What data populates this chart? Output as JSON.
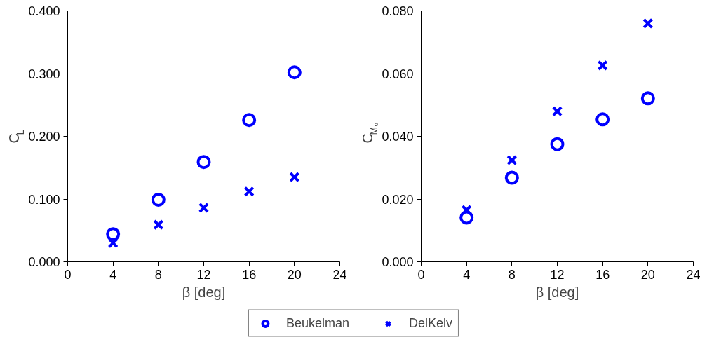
{
  "chart_data": [
    {
      "type": "scatter",
      "xlabel": "β [deg]",
      "ylabel": "C$_{L}$",
      "x": [
        4,
        8,
        12,
        16,
        20
      ],
      "xlim": [
        0,
        24
      ],
      "xticks": [
        0,
        4,
        8,
        12,
        16,
        20,
        24
      ],
      "ylim": [
        0,
        0.4
      ],
      "yticks": [
        {
          "value": 0,
          "label": "0.000"
        },
        {
          "value": 0.1,
          "label": "0.100"
        },
        {
          "value": 0.2,
          "label": "0.200"
        },
        {
          "value": 0.3,
          "label": "0.300"
        },
        {
          "value": 0.4,
          "label": "0.400"
        }
      ],
      "grid": false,
      "legend": "bottom",
      "series": [
        {
          "name": "Beukelman",
          "color": "#0000ff",
          "marker": "circle",
          "values": [
            0.044,
            0.099,
            0.159,
            0.226,
            0.302
          ]
        },
        {
          "name": "DelKelv",
          "color": "#0000ff",
          "marker": "cross",
          "values": [
            0.03,
            0.059,
            0.086,
            0.112,
            0.135
          ]
        }
      ]
    },
    {
      "type": "scatter",
      "xlabel": "β [deg]",
      "ylabel": "C$_{M₀}$",
      "x": [
        4,
        8,
        12,
        16,
        20
      ],
      "xlim": [
        0,
        24
      ],
      "xticks": [
        0,
        4,
        8,
        12,
        16,
        20,
        24
      ],
      "ylim": [
        0,
        0.08
      ],
      "yticks": [
        {
          "value": 0,
          "label": "0.000"
        },
        {
          "value": 0.02,
          "label": "0.020"
        },
        {
          "value": 0.04,
          "label": "0.040"
        },
        {
          "value": 0.06,
          "label": "0.060"
        },
        {
          "value": 0.08,
          "label": "0.080"
        }
      ],
      "grid": false,
      "legend": false,
      "series": [
        {
          "color": "#0000ff",
          "marker": "circle",
          "values": [
            0.0141,
            0.0268,
            0.0375,
            0.0454,
            0.0521
          ]
        },
        {
          "color": "#0000ff",
          "marker": "cross",
          "values": [
            0.0165,
            0.0324,
            0.048,
            0.0626,
            0.076
          ]
        }
      ]
    }
  ]
}
